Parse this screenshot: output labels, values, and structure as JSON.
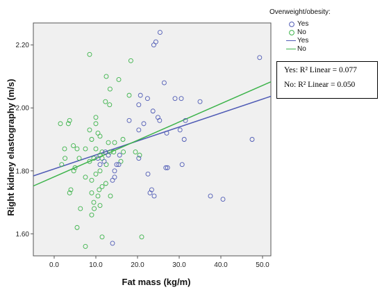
{
  "chart_data": {
    "type": "scatter",
    "title": "",
    "xlabel": "Fat mass (kg/m)",
    "ylabel": "Right kidney elastography (m/s)",
    "xlim": [
      -5,
      52
    ],
    "ylim": [
      1.53,
      2.27
    ],
    "x_ticks": [
      0,
      10,
      20,
      30,
      40,
      50
    ],
    "x_tick_labels": [
      "0.0",
      "10.0",
      "20.0",
      "30.0",
      "40.0",
      "50.0"
    ],
    "y_ticks": [
      1.6,
      1.8,
      2.0,
      2.2
    ],
    "y_tick_labels": [
      "1.60",
      "1.80",
      "2.00",
      "2.20"
    ],
    "grid": false,
    "legend": {
      "title": "Overweight/obesity:",
      "placement": "right",
      "entries": [
        {
          "label": "Yes",
          "kind": "marker",
          "series": "Yes"
        },
        {
          "label": "No",
          "kind": "marker",
          "series": "No"
        },
        {
          "label": "Yes",
          "kind": "line",
          "series": "Yes"
        },
        {
          "label": "No",
          "kind": "line",
          "series": "No"
        }
      ]
    },
    "annotation": {
      "yes_text": "Yes: R² Linear = 0.077",
      "no_text": "No: R² Linear = 0.050"
    },
    "series": [
      {
        "name": "Yes",
        "color": "#4f5bb5",
        "fit": {
          "x0": -5,
          "y0": 1.784,
          "x1": 52,
          "y1": 2.037
        },
        "points": [
          [
            25.4,
            2.24
          ],
          [
            24.4,
            2.21
          ],
          [
            23.9,
            2.2
          ],
          [
            49.3,
            2.16
          ],
          [
            26.4,
            2.08
          ],
          [
            20.7,
            2.04
          ],
          [
            29.0,
            2.03
          ],
          [
            22.4,
            2.03
          ],
          [
            30.5,
            2.03
          ],
          [
            35.0,
            2.02
          ],
          [
            20.3,
            2.01
          ],
          [
            23.7,
            1.99
          ],
          [
            24.9,
            1.97
          ],
          [
            25.3,
            1.96
          ],
          [
            31.5,
            1.96
          ],
          [
            18.0,
            1.96
          ],
          [
            21.5,
            1.95
          ],
          [
            30.2,
            1.93
          ],
          [
            20.3,
            1.93
          ],
          [
            27.0,
            1.92
          ],
          [
            31.2,
            1.9
          ],
          [
            47.5,
            1.9
          ],
          [
            20.3,
            1.84
          ],
          [
            15.7,
            1.85
          ],
          [
            12.3,
            1.86
          ],
          [
            13.0,
            1.85
          ],
          [
            10.5,
            1.84
          ],
          [
            15.0,
            1.82
          ],
          [
            14.5,
            1.8
          ],
          [
            15.5,
            1.82
          ],
          [
            12.0,
            1.83
          ],
          [
            11.0,
            1.82
          ],
          [
            26.8,
            1.81
          ],
          [
            27.2,
            1.81
          ],
          [
            30.7,
            1.82
          ],
          [
            14.0,
            1.77
          ],
          [
            14.5,
            1.78
          ],
          [
            22.5,
            1.79
          ],
          [
            23.4,
            1.74
          ],
          [
            23.0,
            1.73
          ],
          [
            24.0,
            1.72
          ],
          [
            37.5,
            1.72
          ],
          [
            40.5,
            1.71
          ],
          [
            14.0,
            1.57
          ]
        ]
      },
      {
        "name": "No",
        "color": "#3cb34a",
        "fit": {
          "x0": -5,
          "y0": 1.752,
          "x1": 52,
          "y1": 2.083
        },
        "points": [
          [
            8.5,
            2.17
          ],
          [
            18.4,
            2.15
          ],
          [
            12.5,
            2.1
          ],
          [
            15.5,
            2.09
          ],
          [
            13.4,
            2.06
          ],
          [
            12.3,
            2.02
          ],
          [
            13.3,
            2.01
          ],
          [
            18.0,
            2.04
          ],
          [
            10.0,
            1.97
          ],
          [
            1.5,
            1.95
          ],
          [
            3.4,
            1.95
          ],
          [
            3.7,
            1.96
          ],
          [
            10.0,
            1.95
          ],
          [
            8.5,
            1.93
          ],
          [
            10.5,
            1.92
          ],
          [
            9.0,
            1.9
          ],
          [
            11.0,
            1.91
          ],
          [
            13.0,
            1.89
          ],
          [
            14.5,
            1.89
          ],
          [
            16.5,
            1.9
          ],
          [
            4.6,
            1.88
          ],
          [
            2.5,
            1.87
          ],
          [
            5.5,
            1.87
          ],
          [
            7.5,
            1.87
          ],
          [
            10.0,
            1.87
          ],
          [
            13.4,
            1.86
          ],
          [
            11.5,
            1.86
          ],
          [
            14.3,
            1.86
          ],
          [
            16.6,
            1.86
          ],
          [
            19.5,
            1.86
          ],
          [
            20.5,
            1.85
          ],
          [
            11.0,
            1.85
          ],
          [
            11.5,
            1.84
          ],
          [
            9.5,
            1.84
          ],
          [
            6.0,
            1.84
          ],
          [
            2.6,
            1.84
          ],
          [
            1.8,
            1.82
          ],
          [
            8.5,
            1.83
          ],
          [
            5.0,
            1.81
          ],
          [
            4.7,
            1.8
          ],
          [
            12.5,
            1.82
          ],
          [
            11.0,
            1.8
          ],
          [
            10.0,
            1.79
          ],
          [
            16.0,
            1.83
          ],
          [
            7.5,
            1.78
          ],
          [
            9.0,
            1.77
          ],
          [
            12.4,
            1.76
          ],
          [
            3.7,
            1.73
          ],
          [
            4.0,
            1.74
          ],
          [
            9.0,
            1.73
          ],
          [
            10.8,
            1.74
          ],
          [
            11.5,
            1.75
          ],
          [
            10.5,
            1.72
          ],
          [
            9.5,
            1.7
          ],
          [
            11.0,
            1.69
          ],
          [
            9.6,
            1.68
          ],
          [
            9.0,
            1.66
          ],
          [
            6.3,
            1.68
          ],
          [
            13.5,
            1.72
          ],
          [
            5.5,
            1.62
          ],
          [
            11.5,
            1.59
          ],
          [
            21.0,
            1.59
          ],
          [
            7.5,
            1.56
          ]
        ]
      }
    ]
  }
}
